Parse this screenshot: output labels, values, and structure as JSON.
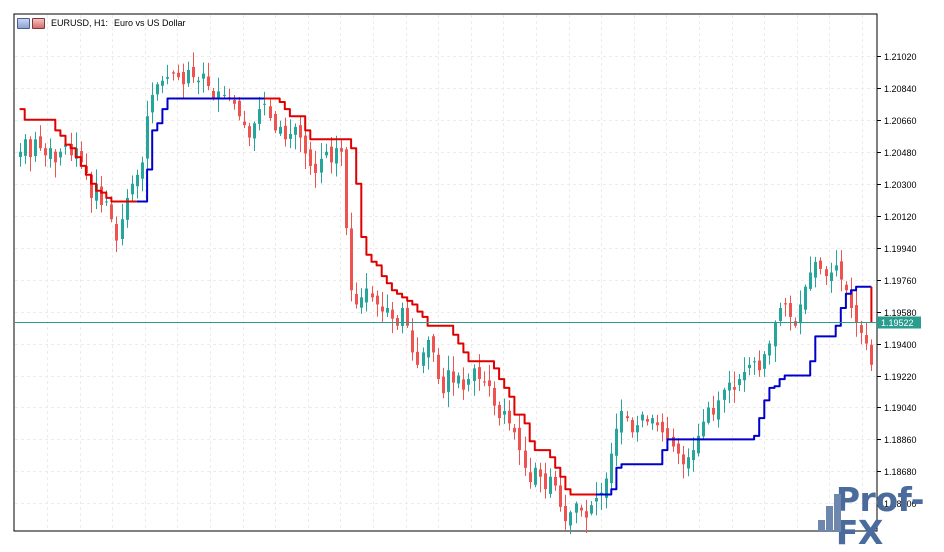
{
  "window": {
    "symbol": "EURUSD, H1:",
    "description": "Euro vs US Dollar"
  },
  "watermark": {
    "text": "Prof-FX"
  },
  "icons": {
    "header_left": "chart-icon",
    "header_right": "chart-color-icon"
  },
  "chart_data": {
    "type": "candlestick",
    "symbol": "EURUSD",
    "timeframe": "H1",
    "title": "EURUSD, H1:  Euro vs US Dollar",
    "y_ticks": [
      "1.21020",
      "1.20840",
      "1.20660",
      "1.20480",
      "1.20300",
      "1.20120",
      "1.19940",
      "1.19760",
      "1.19580",
      "1.19400",
      "1.19220",
      "1.19040",
      "1.18860",
      "1.18680",
      "1.18500"
    ],
    "ylim": [
      1.1835,
      1.2125
    ],
    "current_price": 1.19522,
    "current_price_label": "1.19522",
    "grid": true,
    "colors": {
      "bull": "#26a69a",
      "bear": "#ef5350",
      "trail_down": "#e00000",
      "trail_up": "#0000cc",
      "price_line": "#2a9d8f",
      "grid": "#ececec"
    },
    "closes_approx": [
      1.2048,
      1.2055,
      1.2045,
      1.2055,
      1.205,
      1.2046,
      1.205,
      1.2042,
      1.2048,
      1.2052,
      1.2046,
      1.205,
      1.2042,
      1.2036,
      1.2022,
      1.203,
      1.2018,
      1.202,
      1.201,
      1.1998,
      1.201,
      1.2022,
      1.203,
      1.2035,
      1.2042,
      1.2068,
      1.208,
      1.2086,
      1.2088,
      1.209,
      1.2092,
      1.209,
      1.2086,
      1.2094,
      1.209,
      1.2088,
      1.2092,
      1.2085,
      1.2078,
      1.2082,
      1.208,
      1.2078,
      1.2075,
      1.2068,
      1.2063,
      1.2056,
      1.2064,
      1.2072,
      1.2075,
      1.2067,
      1.206,
      1.2062,
      1.2055,
      1.2058,
      1.2062,
      1.2056,
      1.2047,
      1.204,
      1.2036,
      1.2044,
      1.2048,
      1.2042,
      1.205,
      1.2048,
      1.2005,
      1.197,
      1.1962,
      1.1966,
      1.1971,
      1.1966,
      1.1962,
      1.1958,
      1.196,
      1.1954,
      1.195,
      1.196,
      1.195,
      1.1935,
      1.1928,
      1.1935,
      1.1942,
      1.1935,
      1.192,
      1.1912,
      1.1925,
      1.1918,
      1.1922,
      1.1914,
      1.192,
      1.1926,
      1.192,
      1.1918,
      1.1916,
      1.1905,
      1.1898,
      1.1902,
      1.1895,
      1.189,
      1.188,
      1.187,
      1.1862,
      1.187,
      1.1865,
      1.1858,
      1.1865,
      1.186,
      1.1848,
      1.184,
      1.1845,
      1.185,
      1.1846,
      1.1842,
      1.1849,
      1.1853,
      1.1856,
      1.1864,
      1.1878,
      1.1892,
      1.1902,
      1.1898,
      1.189,
      1.1894,
      1.19,
      1.1896,
      1.1898,
      1.1894,
      1.189,
      1.1886,
      1.1882,
      1.1878,
      1.1872,
      1.1876,
      1.188,
      1.1888,
      1.1896,
      1.1904,
      1.19,
      1.1908,
      1.1914,
      1.1918,
      1.1914,
      1.192,
      1.1924,
      1.1928,
      1.193,
      1.1925,
      1.1934,
      1.194,
      1.1952,
      1.196,
      1.1962,
      1.1955,
      1.195,
      1.1962,
      1.1972,
      1.198,
      1.1986,
      1.1982,
      1.1978,
      1.198,
      1.1984,
      1.1976,
      1.197,
      1.196,
      1.1952,
      1.1946,
      1.194,
      1.1928
    ],
    "trailing_stop": {
      "down_color": "#e00000",
      "up_color": "#0000cc",
      "segments": [
        {
          "trend": "down",
          "values": [
            1.2072,
            1.2066,
            1.2066,
            1.2066,
            1.2066,
            1.2066,
            1.2066,
            1.206,
            1.2057,
            1.2052,
            1.205,
            1.2045,
            1.204,
            1.2035,
            1.203,
            1.2026,
            1.2025,
            1.2022,
            1.202,
            1.202,
            1.202,
            1.202,
            1.202,
            1.202
          ]
        },
        {
          "trend": "up",
          "values": [
            1.202,
            1.202,
            1.2038,
            1.206,
            1.2064,
            1.2072,
            1.2078,
            1.2078,
            1.2078,
            1.2078,
            1.2078,
            1.2078,
            1.2078,
            1.2078,
            1.2078,
            1.2078,
            1.2078,
            1.2078,
            1.2078,
            1.2078,
            1.2078,
            1.2078,
            1.2078,
            1.2078,
            1.2078,
            1.2078
          ]
        },
        {
          "trend": "down",
          "values": [
            1.2078,
            1.2078,
            1.2078,
            1.2076,
            1.2072,
            1.2068,
            1.2068,
            1.2068,
            1.206,
            1.2055,
            1.2055,
            1.2055,
            1.2055,
            1.2055,
            1.2055,
            1.2055,
            1.2055,
            1.205,
            1.203,
            1.2,
            1.199,
            1.1986,
            1.1984,
            1.1978,
            1.1974,
            1.197,
            1.1968,
            1.1966,
            1.1964,
            1.1962,
            1.1958,
            1.1955,
            1.195,
            1.195,
            1.195,
            1.195,
            1.195,
            1.1945,
            1.194,
            1.1935,
            1.193,
            1.193,
            1.193,
            1.193,
            1.193,
            1.1926,
            1.192,
            1.1915,
            1.191,
            1.19,
            1.19,
            1.1895,
            1.1885,
            1.188,
            1.188,
            1.188,
            1.1876,
            1.187,
            1.1865,
            1.1858,
            1.1855,
            1.1855,
            1.1855,
            1.1855,
            1.1855,
            1.1855
          ]
        },
        {
          "trend": "up",
          "values": [
            1.1855,
            1.1855,
            1.1855,
            1.1858,
            1.187,
            1.1872,
            1.1872,
            1.1872,
            1.1872,
            1.1872,
            1.1872,
            1.1872,
            1.1872,
            1.188,
            1.1886,
            1.1886,
            1.1886,
            1.1886,
            1.1886,
            1.1886,
            1.1886,
            1.1886,
            1.1886,
            1.1886,
            1.1886,
            1.1886,
            1.1886,
            1.1886,
            1.1886,
            1.1886,
            1.1886,
            1.1888,
            1.1898,
            1.1908,
            1.1915,
            1.1916,
            1.192,
            1.1922,
            1.1922,
            1.1922,
            1.1922,
            1.1922,
            1.193,
            1.1944,
            1.1944,
            1.1944,
            1.1944,
            1.195,
            1.196,
            1.1968,
            1.197,
            1.1972,
            1.1972,
            1.1972,
            1.1972,
            1.1972,
            1.1972
          ]
        },
        {
          "trend": "down",
          "values": [
            1.1972,
            1.1972,
            1.196,
            1.1955,
            1.1952
          ]
        }
      ]
    }
  }
}
